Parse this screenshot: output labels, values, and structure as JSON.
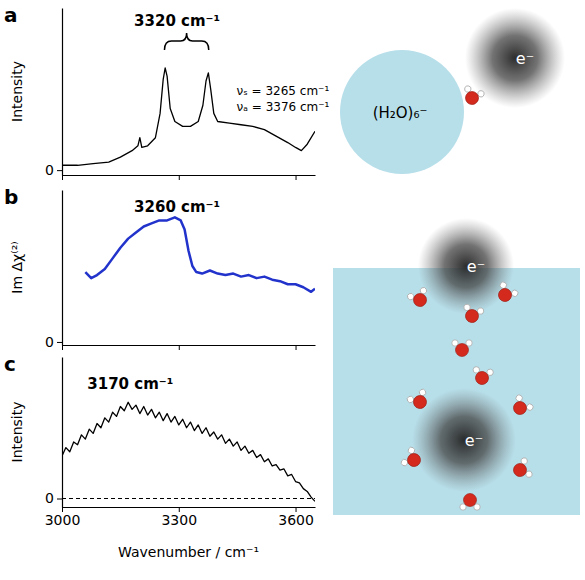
{
  "chart_data": [
    {
      "type": "line",
      "panel": "a",
      "ylabel": "Intensity",
      "color": "#000000",
      "xlim": [
        3000,
        3650
      ],
      "ylim": [
        -0.03,
        1.0
      ],
      "xticks": [
        3000,
        3300,
        3600
      ],
      "yticks": [
        0
      ],
      "tick_labels": "y",
      "grid": false,
      "annotations": [
        "3320 cm⁻¹",
        "νₛ = 3265 cm⁻¹",
        "νₐ = 3376 cm⁻¹"
      ],
      "x": [
        3000,
        3040,
        3080,
        3120,
        3150,
        3180,
        3195,
        3200,
        3205,
        3220,
        3240,
        3252,
        3260,
        3265,
        3270,
        3278,
        3290,
        3310,
        3330,
        3350,
        3362,
        3370,
        3376,
        3382,
        3390,
        3400,
        3430,
        3460,
        3490,
        3520,
        3550,
        3580,
        3600,
        3615,
        3630,
        3650
      ],
      "values": [
        0.03,
        0.03,
        0.04,
        0.05,
        0.08,
        0.12,
        0.15,
        0.2,
        0.14,
        0.15,
        0.2,
        0.35,
        0.56,
        0.63,
        0.58,
        0.38,
        0.3,
        0.27,
        0.27,
        0.3,
        0.4,
        0.55,
        0.6,
        0.5,
        0.35,
        0.3,
        0.29,
        0.28,
        0.27,
        0.25,
        0.21,
        0.17,
        0.14,
        0.12,
        0.16,
        0.24
      ]
    },
    {
      "type": "line",
      "panel": "b",
      "ylabel": "Im Δχ⁽²⁾",
      "color": "#2233cc",
      "xlim": [
        3000,
        3650
      ],
      "ylim": [
        -0.02,
        1.0
      ],
      "xticks": [
        3000,
        3300,
        3600
      ],
      "yticks": [
        0
      ],
      "tick_labels": "y",
      "grid": false,
      "annotations": [
        "3260 cm⁻¹"
      ],
      "x": [
        3060,
        3075,
        3090,
        3110,
        3130,
        3150,
        3170,
        3190,
        3210,
        3230,
        3250,
        3270,
        3290,
        3305,
        3315,
        3325,
        3335,
        3345,
        3360,
        3380,
        3400,
        3420,
        3440,
        3460,
        3480,
        3500,
        3520,
        3540,
        3560,
        3580,
        3600,
        3620,
        3640,
        3650
      ],
      "values": [
        0.46,
        0.42,
        0.44,
        0.48,
        0.55,
        0.62,
        0.68,
        0.72,
        0.76,
        0.78,
        0.8,
        0.8,
        0.82,
        0.8,
        0.74,
        0.6,
        0.5,
        0.46,
        0.45,
        0.47,
        0.45,
        0.44,
        0.45,
        0.43,
        0.44,
        0.42,
        0.43,
        0.41,
        0.4,
        0.38,
        0.38,
        0.36,
        0.33,
        0.35
      ]
    },
    {
      "type": "line",
      "panel": "c",
      "ylabel": "Intensity",
      "xlabel": "Wavenumber / cm⁻¹",
      "color": "#000000",
      "xlim": [
        3000,
        3650
      ],
      "ylim": [
        -0.06,
        1.0
      ],
      "xticks": [
        3000,
        3300,
        3600
      ],
      "yticks": [
        0
      ],
      "grid": true,
      "annotations": [
        "3170 cm⁻¹"
      ],
      "x": [
        3000,
        3010,
        3020,
        3030,
        3040,
        3050,
        3060,
        3070,
        3080,
        3090,
        3100,
        3110,
        3120,
        3130,
        3140,
        3150,
        3160,
        3170,
        3180,
        3190,
        3200,
        3210,
        3220,
        3230,
        3240,
        3250,
        3260,
        3270,
        3280,
        3290,
        3300,
        3310,
        3320,
        3330,
        3340,
        3350,
        3360,
        3370,
        3380,
        3390,
        3400,
        3410,
        3420,
        3430,
        3440,
        3450,
        3460,
        3470,
        3480,
        3490,
        3500,
        3510,
        3520,
        3530,
        3540,
        3550,
        3560,
        3570,
        3580,
        3590,
        3600,
        3610,
        3620,
        3630,
        3640,
        3650
      ],
      "values": [
        0.3,
        0.36,
        0.33,
        0.4,
        0.38,
        0.45,
        0.42,
        0.49,
        0.46,
        0.53,
        0.5,
        0.57,
        0.54,
        0.61,
        0.58,
        0.65,
        0.62,
        0.68,
        0.63,
        0.66,
        0.6,
        0.65,
        0.59,
        0.63,
        0.57,
        0.61,
        0.55,
        0.6,
        0.54,
        0.58,
        0.52,
        0.56,
        0.5,
        0.54,
        0.48,
        0.52,
        0.46,
        0.5,
        0.44,
        0.47,
        0.42,
        0.45,
        0.39,
        0.42,
        0.37,
        0.4,
        0.34,
        0.37,
        0.32,
        0.34,
        0.29,
        0.31,
        0.26,
        0.28,
        0.23,
        0.24,
        0.2,
        0.21,
        0.16,
        0.17,
        0.12,
        0.11,
        0.07,
        0.05,
        0.01,
        -0.02
      ]
    }
  ],
  "diagram": {
    "cluster_label": "(H₂O)₆⁻",
    "electron_labels": [
      "e⁻",
      "e⁻",
      "e⁻"
    ]
  }
}
